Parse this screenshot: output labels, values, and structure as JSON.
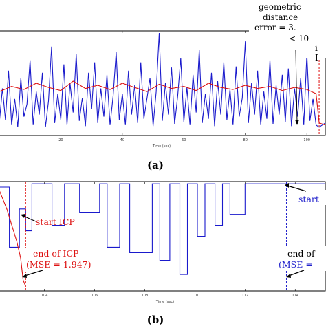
{
  "chart_data": [
    {
      "type": "line",
      "panel_label": "(a)",
      "xlabel": "Time (sec)",
      "x_ticks": [
        20,
        40,
        60,
        80,
        100
      ],
      "xlim": [
        0,
        106
      ],
      "ylim": [
        0,
        1
      ],
      "series": [
        {
          "color": "#1a1acc",
          "values_note_free": true,
          "x": [
            0,
            1,
            2,
            3,
            4,
            5,
            6,
            7,
            8,
            9,
            10,
            11,
            12,
            13,
            14,
            15,
            16,
            17,
            18,
            19,
            20,
            21,
            22,
            23,
            24,
            25,
            26,
            27,
            28,
            29,
            30,
            31,
            32,
            33,
            34,
            35,
            36,
            37,
            38,
            39,
            40,
            41,
            42,
            43,
            44,
            45,
            46,
            47,
            48,
            49,
            50,
            51,
            52,
            53,
            54,
            55,
            56,
            57,
            58,
            59,
            60,
            61,
            62,
            63,
            64,
            65,
            66,
            67,
            68,
            69,
            70,
            71,
            72,
            73,
            74,
            75,
            76,
            77,
            78,
            79,
            80,
            81,
            82,
            83,
            84,
            85,
            86,
            87,
            88,
            89,
            90,
            91,
            92,
            93,
            94,
            95,
            96,
            97,
            98,
            99,
            100,
            101,
            102,
            103,
            104,
            105,
            106
          ],
          "y": [
            0.12,
            0.45,
            0.15,
            0.62,
            0.1,
            0.35,
            0.08,
            0.55,
            0.18,
            0.3,
            0.72,
            0.1,
            0.42,
            0.2,
            0.6,
            0.08,
            0.33,
            0.85,
            0.12,
            0.4,
            0.15,
            0.68,
            0.1,
            0.5,
            0.22,
            0.78,
            0.14,
            0.36,
            0.09,
            0.6,
            0.25,
            0.7,
            0.12,
            0.45,
            0.18,
            0.58,
            0.1,
            0.38,
            0.8,
            0.15,
            0.4,
            0.1,
            0.62,
            0.2,
            0.48,
            0.12,
            0.7,
            0.16,
            0.35,
            0.55,
            0.09,
            0.42,
            0.98,
            0.14,
            0.5,
            0.2,
            0.65,
            0.11,
            0.38,
            0.74,
            0.13,
            0.46,
            0.1,
            0.58,
            0.22,
            0.82,
            0.12,
            0.4,
            0.16,
            0.6,
            0.09,
            0.52,
            0.2,
            0.7,
            0.15,
            0.44,
            0.1,
            0.66,
            0.18,
            0.36,
            0.9,
            0.12,
            0.5,
            0.2,
            0.62,
            0.1,
            0.42,
            0.16,
            0.72,
            0.11,
            0.48,
            0.2,
            0.58,
            0.13,
            0.64,
            0.09,
            0.45,
            0.18,
            0.55,
            0.1,
            0.78,
            0.14,
            0.35,
            0.1,
            0.08,
            0.1,
            0.12
          ]
        },
        {
          "color": "#dd1111",
          "x": [
            0,
            4,
            8,
            12,
            16,
            20,
            24,
            28,
            32,
            36,
            40,
            44,
            48,
            52,
            56,
            60,
            64,
            68,
            72,
            76,
            80,
            84,
            88,
            92,
            96,
            100,
            103,
            104,
            106
          ],
          "y": [
            0.42,
            0.47,
            0.44,
            0.5,
            0.46,
            0.43,
            0.52,
            0.45,
            0.48,
            0.44,
            0.5,
            0.46,
            0.42,
            0.49,
            0.45,
            0.47,
            0.43,
            0.5,
            0.46,
            0.44,
            0.48,
            0.45,
            0.47,
            0.43,
            0.46,
            0.44,
            0.4,
            0.12,
            0.1
          ]
        }
      ],
      "annotation": {
        "lines": [
          "geometric",
          "distance",
          "error = 3.",
          "< 10"
        ],
        "x_marker": 104
      }
    },
    {
      "type": "line",
      "panel_label": "(b)",
      "xlabel": "Time (sec)",
      "x_ticks": [
        104,
        106,
        108,
        110,
        112,
        114
      ],
      "xlim": [
        102.2,
        115.2
      ],
      "ylim": [
        0,
        1
      ],
      "series": [
        {
          "color": "#1a1acc",
          "x": [
            102.2,
            102.6,
            102.6,
            103.0,
            103.0,
            103.25,
            103.25,
            103.5,
            103.5,
            104.3,
            104.3,
            104.8,
            104.8,
            105.4,
            105.4,
            106.2,
            106.2,
            106.5,
            106.5,
            107.0,
            107.0,
            107.4,
            107.4,
            108.3,
            108.3,
            108.6,
            108.6,
            109.0,
            109.0,
            109.4,
            109.4,
            109.7,
            109.7,
            110.1,
            110.1,
            110.4,
            110.4,
            110.8,
            110.8,
            111.1,
            111.1,
            111.4,
            111.4,
            112.0,
            112.0,
            112.5,
            112.5,
            113.65,
            113.65,
            114.0,
            114.0,
            115.2
          ],
          "y": [
            0.95,
            0.95,
            0.4,
            0.4,
            0.75,
            0.75,
            0.55,
            0.55,
            0.98,
            0.98,
            0.6,
            0.6,
            0.98,
            0.98,
            0.72,
            0.72,
            0.98,
            0.98,
            0.4,
            0.4,
            0.98,
            0.98,
            0.35,
            0.35,
            0.98,
            0.98,
            0.28,
            0.28,
            0.98,
            0.98,
            0.15,
            0.15,
            0.98,
            0.98,
            0.5,
            0.5,
            0.98,
            0.98,
            0.6,
            0.6,
            0.98,
            0.98,
            0.7,
            0.7,
            0.98,
            0.98,
            0.98,
            0.98,
            0.98,
            0.98,
            0.98,
            0.98
          ]
        },
        {
          "color": "#dd1111",
          "x": [
            102.2,
            102.5,
            102.7,
            102.9,
            103.05,
            103.15,
            103.25
          ],
          "y": [
            0.92,
            0.75,
            0.6,
            0.45,
            0.3,
            0.1,
            0.04
          ]
        }
      ],
      "markers": [
        103.25,
        113.65
      ],
      "annotations": {
        "start_icp": "start ICP",
        "end_icp_line1": "end of ICP",
        "end_icp_line2": "(MSE = 1.947)",
        "right_start": "start",
        "right_end_line1": "end of",
        "right_end_line2": "(MSE ="
      }
    }
  ]
}
